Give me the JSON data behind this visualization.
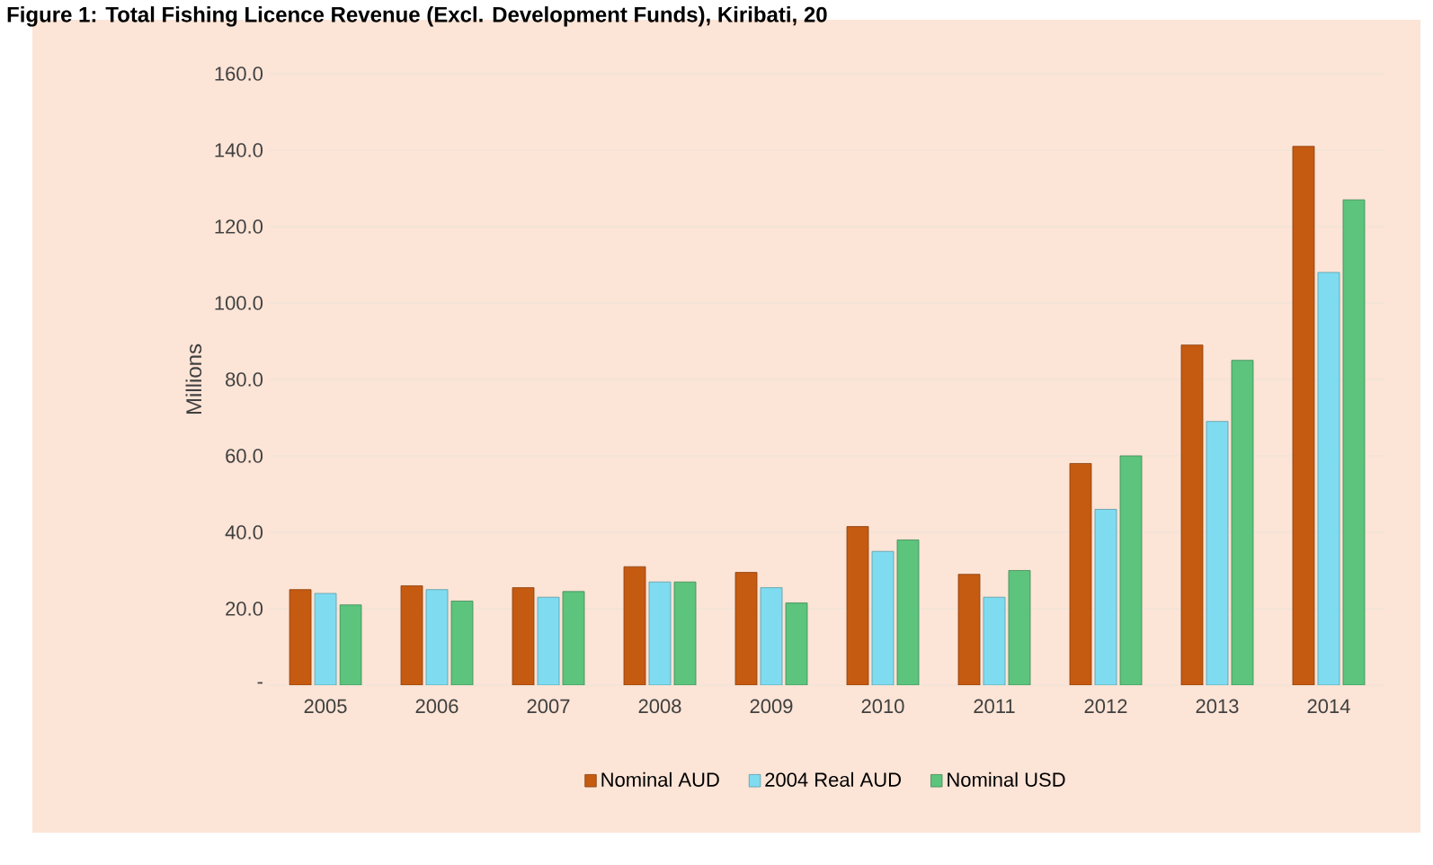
{
  "chart_data": {
    "type": "bar",
    "title": "Figure 1: Total Fishing Licence Revenue (Excl. Development Funds), Kiribati, 20",
    "ylabel": "Millions",
    "categories": [
      "2005",
      "2006",
      "2007",
      "2008",
      "2009",
      "2010",
      "2011",
      "2012",
      "2013",
      "2014"
    ],
    "series": [
      {
        "name": "Nominal AUD",
        "color": "#c55a11",
        "values": [
          25,
          26,
          25.5,
          31,
          29.5,
          41.5,
          29,
          58,
          89,
          141
        ]
      },
      {
        "name": "2004 Real AUD",
        "color": "#7fdcf0",
        "values": [
          24,
          25,
          23,
          27,
          25.5,
          35,
          23,
          46,
          69,
          108
        ]
      },
      {
        "name": "Nominal USD",
        "color": "#5cc47c",
        "values": [
          21,
          22,
          24.5,
          27,
          21.5,
          38,
          30,
          60,
          85,
          127
        ]
      }
    ],
    "ylim": [
      0,
      160
    ],
    "yticks": [
      {
        "value": 0,
        "label": "-"
      },
      {
        "value": 20,
        "label": "20.0"
      },
      {
        "value": 40,
        "label": "40.0"
      },
      {
        "value": 60,
        "label": "60.0"
      },
      {
        "value": 80,
        "label": "80.0"
      },
      {
        "value": 100,
        "label": "100.0"
      },
      {
        "value": 120,
        "label": "120.0"
      },
      {
        "value": 140,
        "label": "140.0"
      },
      {
        "value": 160,
        "label": "160.0"
      }
    ],
    "grid": "y",
    "legend": "bottom"
  }
}
